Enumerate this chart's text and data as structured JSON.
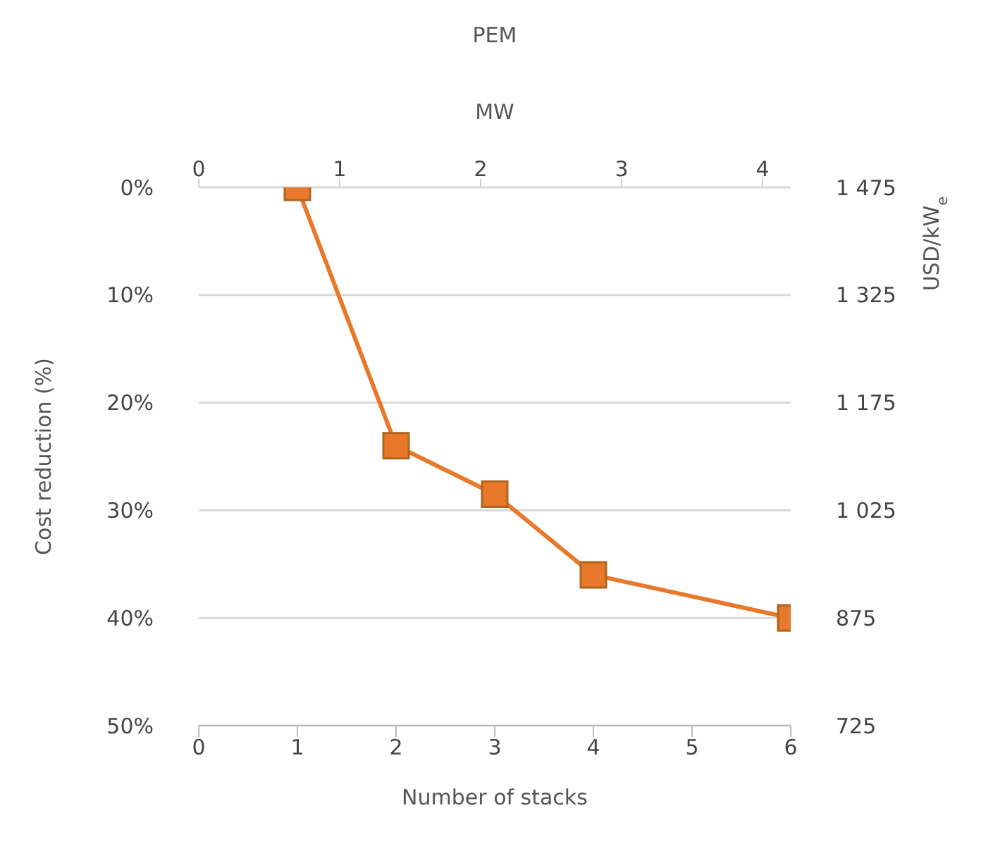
{
  "chart_data": {
    "type": "line",
    "title": "PEM",
    "xlabel": "Number of stacks",
    "x2label": "MW",
    "ylabel": "Cost reduction (%)",
    "y2label": "USD/kW$_{e}$",
    "x": [
      1,
      2,
      3,
      4,
      6
    ],
    "series": [
      {
        "color": "#e8782a",
        "values": [
          0,
          24,
          28.5,
          36,
          40
        ]
      }
    ],
    "xlim": [
      0,
      6
    ],
    "xticks": [
      0,
      1,
      2,
      3,
      4,
      5,
      6
    ],
    "x2lim": [
      0,
      4.2
    ],
    "x2ticks": [
      0,
      1,
      2,
      3,
      4
    ],
    "ylim": [
      50,
      0
    ],
    "yticks": [
      {
        "value": 0,
        "label": "0%"
      },
      {
        "value": 10,
        "label": "10%"
      },
      {
        "value": 20,
        "label": "20%"
      },
      {
        "value": 30,
        "label": "30%"
      },
      {
        "value": 40,
        "label": "40%"
      },
      {
        "value": 50,
        "label": "50%"
      }
    ],
    "y2lim": [
      725,
      1475
    ],
    "y2ticks": [
      {
        "value": 725,
        "label": "725"
      },
      {
        "value": 875,
        "label": "875"
      },
      {
        "value": 1025,
        "label": "1 025"
      },
      {
        "value": 1175,
        "label": "1 175"
      },
      {
        "value": 1325,
        "label": "1 325"
      },
      {
        "value": 1475,
        "label": "1 475"
      }
    ],
    "grid": "y",
    "marker": "square",
    "line_style": "solid"
  }
}
